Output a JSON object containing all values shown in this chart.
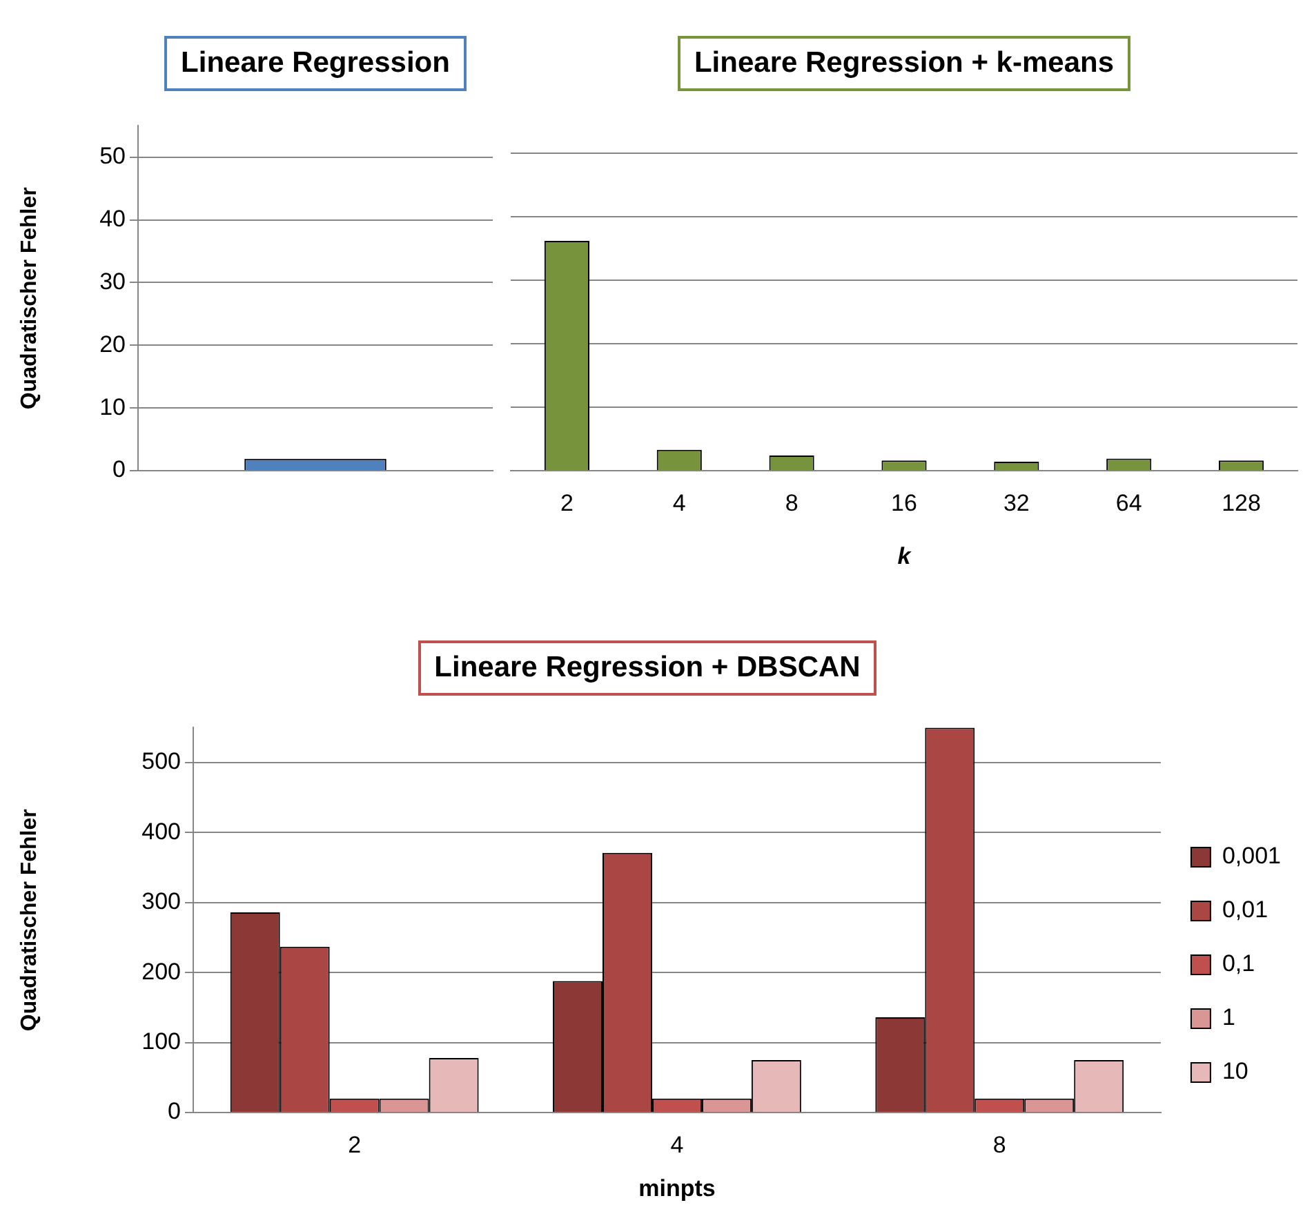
{
  "chart_data": [
    {
      "type": "bar",
      "title": "Lineare Regression",
      "ylabel": "Quadratischer Fehler",
      "categories": [
        null
      ],
      "values": [
        1.9
      ],
      "color": "#4f81bd",
      "ylim": [
        0,
        55
      ],
      "yticks": [
        0,
        10,
        20,
        30,
        40,
        50
      ],
      "grid": "y",
      "tick_labels": "y"
    },
    {
      "type": "bar",
      "title": "Lineare Regression + k-means",
      "xlabel": "k",
      "categories": [
        "2",
        "4",
        "8",
        "16",
        "32",
        "64",
        "128"
      ],
      "values": [
        36.2,
        3.3,
        2.4,
        1.6,
        1.4,
        1.9,
        1.6
      ],
      "color": "#77933c",
      "yticks": [
        0,
        10,
        20,
        30,
        40,
        50
      ],
      "grid": "y",
      "tick_labels": "x"
    },
    {
      "type": "bar",
      "title": "Lineare Regression + DBSCAN",
      "xlabel": "minpts",
      "ylabel": "Quadratischer Fehler",
      "categories": [
        "2",
        "4",
        "8"
      ],
      "series": [
        {
          "name": "0,001",
          "color": "#8c3836",
          "values": [
            286,
            188,
            136
          ]
        },
        {
          "name": "0,01",
          "color": "#aa4643",
          "values": [
            237,
            371,
            550
          ]
        },
        {
          "name": "0,1",
          "color": "#c0504d",
          "values": [
            20,
            20,
            20
          ]
        },
        {
          "name": "1",
          "color": "#d99694",
          "values": [
            20,
            20,
            20
          ]
        },
        {
          "name": "10",
          "color": "#e6b9b8",
          "values": [
            78,
            75,
            75
          ]
        }
      ],
      "ylim": [
        0,
        550
      ],
      "yticks": [
        0,
        100,
        200,
        300,
        400,
        500
      ],
      "grid": "y",
      "legend": "right"
    }
  ]
}
